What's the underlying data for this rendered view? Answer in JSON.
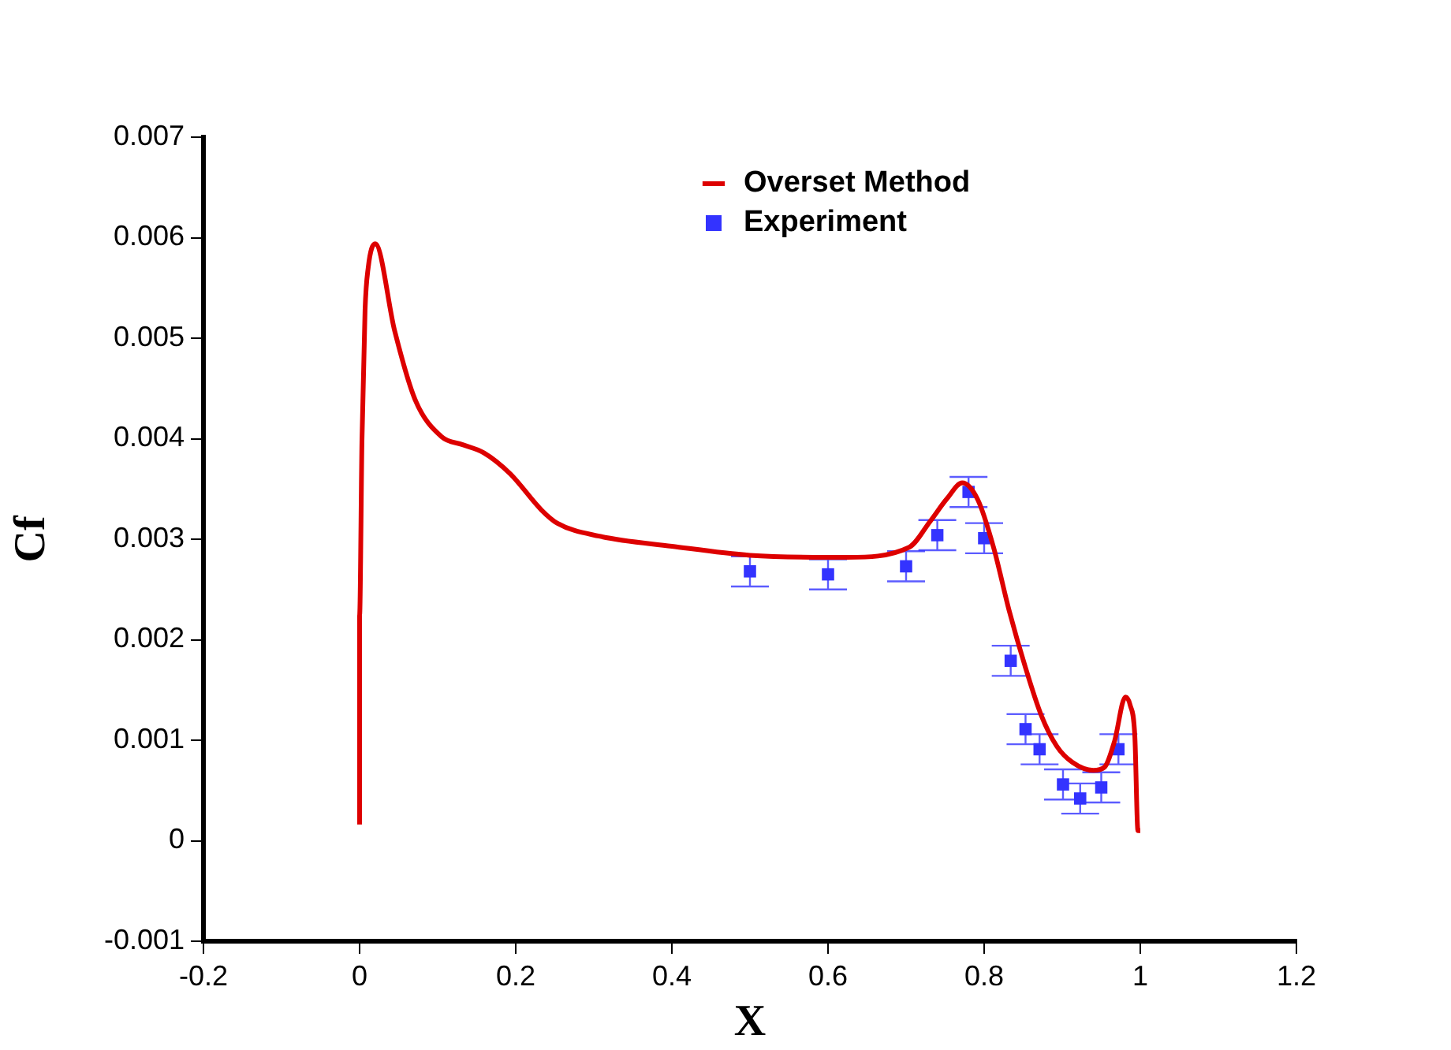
{
  "chart_data": {
    "type": "line",
    "xlabel": "X",
    "ylabel": "Cf",
    "xlim": [
      -0.2,
      1.2
    ],
    "xticks": [
      -0.2,
      0,
      0.2,
      0.4,
      0.6,
      0.8,
      1,
      1.2
    ],
    "ylim": [
      -0.001,
      0.007
    ],
    "yticks": [
      -0.001,
      0,
      0.001,
      0.002,
      0.003,
      0.004,
      0.005,
      0.006,
      0.007
    ],
    "grid": false,
    "legend": "top right",
    "series": [
      {
        "name": "Overset Method",
        "color": "#dd0000",
        "marker": "none",
        "line_style": "solid",
        "x": [
          0,
          0,
          0.003,
          0.007,
          0.011,
          0.02,
          0.045,
          0.071,
          0.105,
          0.132,
          0.159,
          0.193,
          0.233,
          0.253,
          0.307,
          0.4,
          0.5,
          0.6,
          0.624,
          0.704,
          0.731,
          0.752,
          0.772,
          0.792,
          0.812,
          0.832,
          0.853,
          0.873,
          0.893,
          0.913,
          0.94,
          0.954,
          0.967,
          0.981,
          0.987,
          0.993,
          0.997,
          1.0
        ],
        "values": [
          0.00016,
          0.00224,
          0.00397,
          0.00528,
          0.0057,
          0.00594,
          0.00507,
          0.00439,
          0.00402,
          0.00394,
          0.00386,
          0.00365,
          0.00329,
          0.00316,
          0.00303,
          0.00293,
          0.00284,
          0.00282,
          0.00282,
          0.00292,
          0.00318,
          0.0034,
          0.00356,
          0.00339,
          0.00292,
          0.00229,
          0.00172,
          0.00125,
          0.00094,
          0.00078,
          0.0007,
          0.00073,
          0.00099,
          0.00143,
          0.00135,
          0.00104,
          0.0001,
          0.0001
        ]
      },
      {
        "name": "Experiment",
        "type": "scatter",
        "color": "#3333ff",
        "marker": "square",
        "x": [
          0.5,
          0.6,
          0.7,
          0.74,
          0.78,
          0.8,
          0.834,
          0.853,
          0.871,
          0.901,
          0.923,
          0.95,
          0.972
        ],
        "values": [
          0.00268,
          0.00265,
          0.00273,
          0.00304,
          0.00347,
          0.00301,
          0.00179,
          0.00111,
          0.00091,
          0.00056,
          0.00042,
          0.00053,
          0.00091
        ],
        "errors": [
          0.00015,
          0.00015,
          0.00015,
          0.00015,
          0.00015,
          0.00015,
          0.00015,
          0.00015,
          0.00015,
          0.00015,
          0.00015,
          0.00015,
          0.00015
        ]
      }
    ]
  }
}
